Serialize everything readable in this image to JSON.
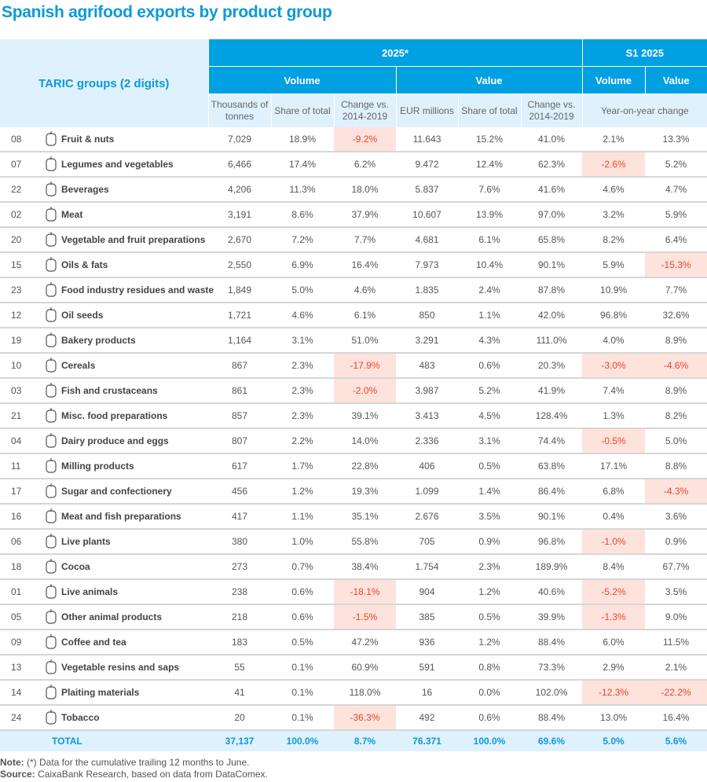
{
  "title": "Spanish agrifood exports by product group",
  "header": {
    "taric": "TARIC groups (2 digits)",
    "period_2025": "2025*",
    "period_s1": "S1 2025",
    "volume": "Volume",
    "value": "Value",
    "s1_volume": "Volume",
    "s1_value": "Value",
    "sub": [
      "Thousands of tonnes",
      "Share of total",
      "Change vs. 2014-2019",
      "EUR millions",
      "Share of total",
      "Change vs. 2014-2019"
    ],
    "yoy": "Year-on-year change"
  },
  "rows": [
    {
      "code": "08",
      "icon": "apple-icon",
      "name": "Fruit & nuts",
      "v": [
        "7,029",
        "18.9%",
        "-9.2%",
        "11.643",
        "15.2%",
        "41.0%",
        "2.1%",
        "13.3%"
      ]
    },
    {
      "code": "07",
      "icon": "vegetables-icon",
      "name": "Legumes and vegetables",
      "v": [
        "6,466",
        "17.4%",
        "6.2%",
        "9.472",
        "12.4%",
        "62.3%",
        "-2.6%",
        "5.2%"
      ]
    },
    {
      "code": "22",
      "icon": "bottle-glass-icon",
      "name": "Beverages",
      "v": [
        "4,206",
        "11.3%",
        "18.0%",
        "5.837",
        "7.6%",
        "41.6%",
        "4.6%",
        "4.7%"
      ]
    },
    {
      "code": "02",
      "icon": "ham-icon",
      "name": "Meat",
      "v": [
        "3,191",
        "8.6%",
        "37.9%",
        "10.607",
        "13.9%",
        "97.0%",
        "3.2%",
        "5.9%"
      ]
    },
    {
      "code": "20",
      "icon": "jar-icon",
      "name": "Vegetable and fruit preparations",
      "v": [
        "2,670",
        "7.2%",
        "7.7%",
        "4.681",
        "6.1%",
        "65.8%",
        "8.2%",
        "6.4%"
      ]
    },
    {
      "code": "15",
      "icon": "oil-bottle-icon",
      "name": "Oils & fats",
      "v": [
        "2,550",
        "6.9%",
        "16.4%",
        "7.973",
        "10.4%",
        "90.1%",
        "5.9%",
        "-15.3%"
      ]
    },
    {
      "code": "23",
      "icon": "sack-icon",
      "name": "Food industry residues and waste",
      "v": [
        "1,849",
        "5.0%",
        "4.6%",
        "1.835",
        "2.4%",
        "87.8%",
        "10.9%",
        "7.7%"
      ]
    },
    {
      "code": "12",
      "icon": "sunflower-icon",
      "name": "Oil seeds",
      "v": [
        "1,721",
        "4.6%",
        "6.1%",
        "850",
        "1.1%",
        "42.0%",
        "96.8%",
        "32.6%"
      ]
    },
    {
      "code": "19",
      "icon": "croissant-icon",
      "name": "Bakery products",
      "v": [
        "1,164",
        "3.1%",
        "51.0%",
        "3.291",
        "4.3%",
        "111.0%",
        "4.0%",
        "8.9%"
      ]
    },
    {
      "code": "10",
      "icon": "wheat-icon",
      "name": "Cereals",
      "v": [
        "867",
        "2.3%",
        "-17.9%",
        "483",
        "0.6%",
        "20.3%",
        "-3.0%",
        "-4.6%"
      ]
    },
    {
      "code": "03",
      "icon": "fish-icon",
      "name": "Fish and crustaceans",
      "v": [
        "861",
        "2.3%",
        "-2.0%",
        "3.987",
        "5.2%",
        "41.9%",
        "7.4%",
        "8.9%"
      ]
    },
    {
      "code": "21",
      "icon": "container-icon",
      "name": "Misc. food preparations",
      "v": [
        "857",
        "2.3%",
        "39.1%",
        "3.413",
        "4.5%",
        "128.4%",
        "1.3%",
        "8.2%"
      ]
    },
    {
      "code": "04",
      "icon": "milk-carton-icon",
      "name": "Dairy produce and eggs",
      "v": [
        "807",
        "2.2%",
        "14.0%",
        "2.336",
        "3.1%",
        "74.4%",
        "-0.5%",
        "5.0%"
      ]
    },
    {
      "code": "11",
      "icon": "windmill-icon",
      "name": "Milling products",
      "v": [
        "617",
        "1.7%",
        "22.8%",
        "406",
        "0.5%",
        "63.8%",
        "17.1%",
        "8.8%"
      ]
    },
    {
      "code": "17",
      "icon": "candy-icon",
      "name": "Sugar and confectionery",
      "v": [
        "456",
        "1.2%",
        "19.3%",
        "1.099",
        "1.4%",
        "86.4%",
        "6.8%",
        "-4.3%"
      ]
    },
    {
      "code": "16",
      "icon": "tin-can-icon",
      "name": "Meat and fish preparations",
      "v": [
        "417",
        "1.1%",
        "35.1%",
        "2.676",
        "3.5%",
        "90.1%",
        "0.4%",
        "3.6%"
      ]
    },
    {
      "code": "06",
      "icon": "sprout-icon",
      "name": "Live plants",
      "v": [
        "380",
        "1.0%",
        "55.8%",
        "705",
        "0.9%",
        "96.8%",
        "-1.0%",
        "0.9%"
      ]
    },
    {
      "code": "18",
      "icon": "cocoa-pod-icon",
      "name": "Cocoa",
      "v": [
        "273",
        "0.7%",
        "38.4%",
        "1.754",
        "2.3%",
        "189.9%",
        "8.4%",
        "67.7%"
      ]
    },
    {
      "code": "01",
      "icon": "pig-icon",
      "name": "Live animals",
      "v": [
        "238",
        "0.6%",
        "-18.1%",
        "904",
        "1.2%",
        "40.6%",
        "-5.2%",
        "3.5%"
      ]
    },
    {
      "code": "05",
      "icon": "animal-product-icon",
      "name": "Other animal products",
      "v": [
        "218",
        "0.6%",
        "-1.5%",
        "385",
        "0.5%",
        "39.9%",
        "-1.3%",
        "9.0%"
      ]
    },
    {
      "code": "09",
      "icon": "coffee-cup-icon",
      "name": "Coffee and tea",
      "v": [
        "183",
        "0.5%",
        "47.2%",
        "936",
        "1.2%",
        "88.4%",
        "6.0%",
        "11.5%"
      ]
    },
    {
      "code": "13",
      "icon": "resin-glass-icon",
      "name": "Vegetable resins and saps",
      "v": [
        "55",
        "0.1%",
        "60.9%",
        "591",
        "0.8%",
        "73.3%",
        "2.9%",
        "2.1%"
      ]
    },
    {
      "code": "14",
      "icon": "bamboo-icon",
      "name": "Plaiting materials",
      "v": [
        "41",
        "0.1%",
        "118.0%",
        "16",
        "0.0%",
        "102.0%",
        "-12.3%",
        "-22.2%"
      ]
    },
    {
      "code": "24",
      "icon": "cigarette-icon",
      "name": "Tobacco",
      "v": [
        "20",
        "0.1%",
        "-36.3%",
        "492",
        "0.6%",
        "88.4%",
        "13.0%",
        "16.4%"
      ]
    }
  ],
  "total": {
    "label": "TOTAL",
    "v": [
      "37,137",
      "100.0%",
      "8.7%",
      "76.371",
      "100.0%",
      "69.6%",
      "5.0%",
      "5.6%"
    ]
  },
  "notes": {
    "note_label": "Note:",
    "note": " (*) Data for the cumulative trailing 12 months to June.",
    "source_label": "Source:",
    "source": " CaixaBank Research, based on data from DataComex."
  },
  "colors": {
    "header": "#00a0e2",
    "header_light": "#dff1fc",
    "negative_bg": "#fde3dc",
    "negative_text": "#e8452c",
    "title": "#0a9ad9"
  }
}
